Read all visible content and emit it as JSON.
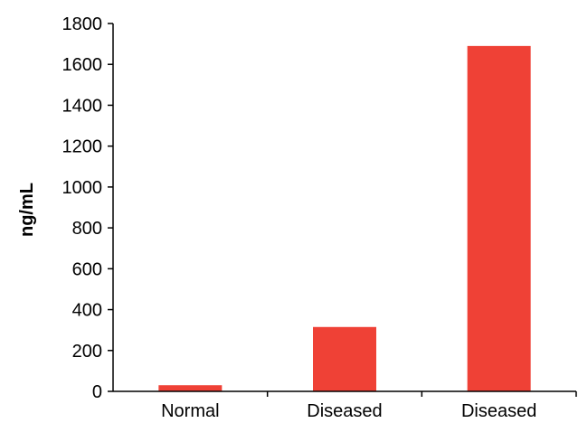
{
  "chart_data": {
    "type": "bar",
    "categories": [
      "Normal",
      "Diseased",
      "Diseased"
    ],
    "values": [
      30,
      315,
      1690
    ],
    "title": "",
    "xlabel": "",
    "ylabel": "ng/mL",
    "ylim": [
      0,
      1800
    ],
    "yticks": [
      0,
      200,
      400,
      600,
      800,
      1000,
      1200,
      1400,
      1600,
      1800
    ],
    "grid": false,
    "legend": "none",
    "bar_color": "#ef4136"
  }
}
